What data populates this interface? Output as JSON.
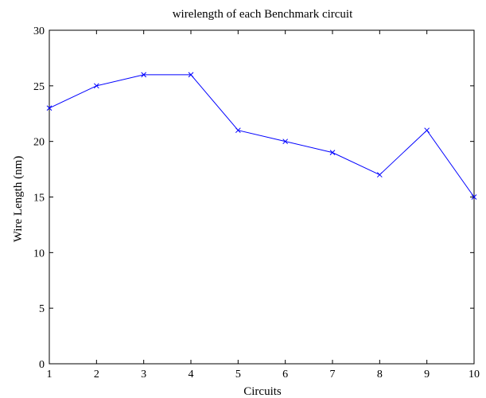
{
  "chart_data": {
    "type": "line",
    "title": "wirelength of each Benchmark circuit",
    "xlabel": "Circuits",
    "ylabel": "Wire Length (nm)",
    "xlim": [
      1,
      10
    ],
    "ylim": [
      0,
      30
    ],
    "xticks": [
      1,
      2,
      3,
      4,
      5,
      6,
      7,
      8,
      9,
      10
    ],
    "yticks": [
      0,
      5,
      10,
      15,
      20,
      25,
      30
    ],
    "grid": false,
    "legend": "none",
    "series": [
      {
        "x": [
          1,
          2,
          3,
          4,
          5,
          6,
          7,
          8,
          9,
          10
        ],
        "values": [
          23,
          25,
          26,
          26,
          21,
          20,
          19,
          17,
          21,
          15
        ],
        "color": "#0000ff",
        "marker": "x"
      }
    ]
  }
}
